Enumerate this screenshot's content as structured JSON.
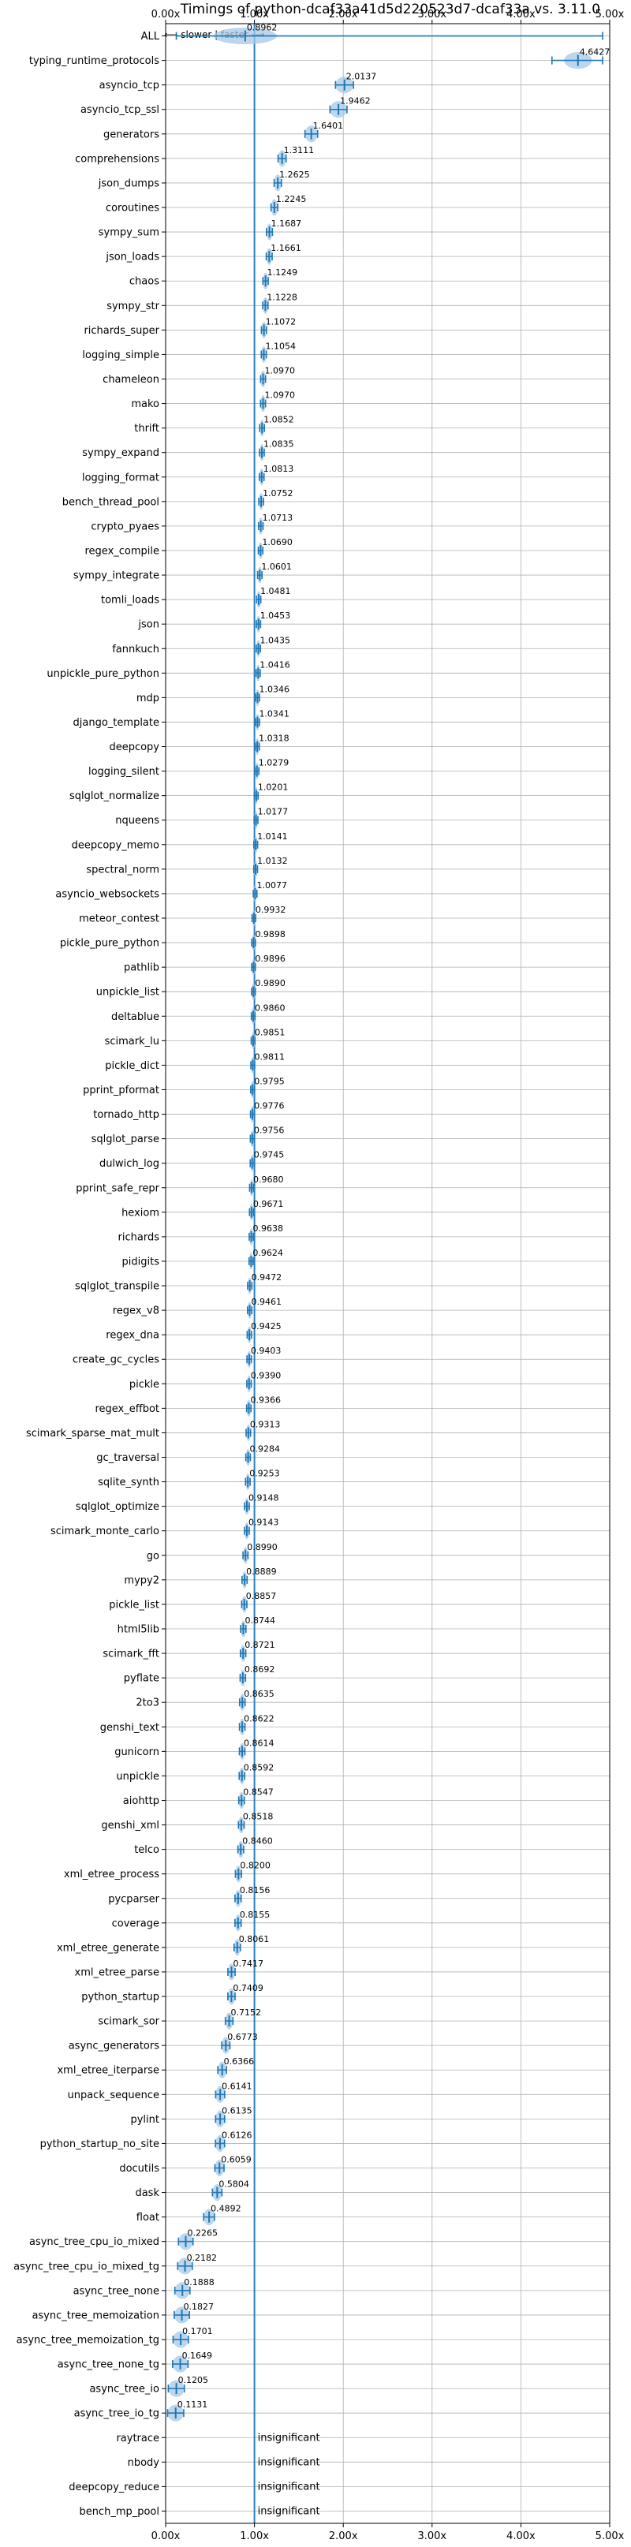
{
  "chart_data": {
    "type": "violin",
    "title": "Timings of python-dcaf33a41d5d220523d7-dcaf33a vs. 3.11.0",
    "direction_note": "⟵ slower | faster ⟶",
    "xlim": [
      0,
      5
    ],
    "x_ticks": [
      0,
      1,
      2,
      3,
      4,
      5
    ],
    "x_tick_labels": [
      "0.00x",
      "1.00x",
      "2.00x",
      "3.00x",
      "4.00x",
      "5.00x"
    ],
    "reference_line": 1.0,
    "grid": true,
    "colors": {
      "accent": "#1f77b4",
      "violin": "#a6c8e8",
      "grid": "#b0b0b0",
      "frame": "#000000",
      "ref_line": "#2a7fc1"
    },
    "categories": [
      "ALL",
      "typing_runtime_protocols",
      "asyncio_tcp",
      "asyncio_tcp_ssl",
      "generators",
      "comprehensions",
      "json_dumps",
      "coroutines",
      "sympy_sum",
      "json_loads",
      "chaos",
      "sympy_str",
      "richards_super",
      "logging_simple",
      "chameleon",
      "mako",
      "thrift",
      "sympy_expand",
      "logging_format",
      "bench_thread_pool",
      "crypto_pyaes",
      "regex_compile",
      "sympy_integrate",
      "tomli_loads",
      "json",
      "fannkuch",
      "unpickle_pure_python",
      "mdp",
      "django_template",
      "deepcopy",
      "logging_silent",
      "sqlglot_normalize",
      "nqueens",
      "deepcopy_memo",
      "spectral_norm",
      "asyncio_websockets",
      "meteor_contest",
      "pickle_pure_python",
      "pathlib",
      "unpickle_list",
      "deltablue",
      "scimark_lu",
      "pickle_dict",
      "pprint_pformat",
      "tornado_http",
      "sqlglot_parse",
      "dulwich_log",
      "pprint_safe_repr",
      "hexiom",
      "richards",
      "pidigits",
      "sqlglot_transpile",
      "regex_v8",
      "regex_dna",
      "create_gc_cycles",
      "pickle",
      "regex_effbot",
      "scimark_sparse_mat_mult",
      "gc_traversal",
      "sqlite_synth",
      "sqlglot_optimize",
      "scimark_monte_carlo",
      "go",
      "mypy2",
      "pickle_list",
      "html5lib",
      "scimark_fft",
      "pyflate",
      "2to3",
      "genshi_text",
      "gunicorn",
      "unpickle",
      "aiohttp",
      "genshi_xml",
      "telco",
      "xml_etree_process",
      "pycparser",
      "coverage",
      "xml_etree_generate",
      "xml_etree_parse",
      "python_startup",
      "scimark_sor",
      "async_generators",
      "xml_etree_iterparse",
      "unpack_sequence",
      "pylint",
      "python_startup_no_site",
      "docutils",
      "dask",
      "float",
      "async_tree_cpu_io_mixed",
      "async_tree_cpu_io_mixed_tg",
      "async_tree_none",
      "async_tree_memoization",
      "async_tree_memoization_tg",
      "async_tree_none_tg",
      "async_tree_io",
      "async_tree_io_tg",
      "raytrace",
      "nbody",
      "deepcopy_reduce",
      "bench_mp_pool"
    ],
    "values": [
      0.8962,
      4.6427,
      2.0137,
      1.9462,
      1.6401,
      1.3111,
      1.2625,
      1.2245,
      1.1687,
      1.1661,
      1.1249,
      1.1228,
      1.1072,
      1.1054,
      1.097,
      1.097,
      1.0852,
      1.0835,
      1.0813,
      1.0752,
      1.0713,
      1.069,
      1.0601,
      1.0481,
      1.0453,
      1.0435,
      1.0416,
      1.0346,
      1.0341,
      1.0318,
      1.0279,
      1.0201,
      1.0177,
      1.0141,
      1.0132,
      1.0077,
      0.9932,
      0.9898,
      0.9896,
      0.989,
      0.986,
      0.9851,
      0.9811,
      0.9795,
      0.9776,
      0.9756,
      0.9745,
      0.968,
      0.9671,
      0.9638,
      0.9624,
      0.9472,
      0.9461,
      0.9425,
      0.9403,
      0.939,
      0.9366,
      0.9313,
      0.9284,
      0.9253,
      0.9148,
      0.9143,
      0.899,
      0.8889,
      0.8857,
      0.8744,
      0.8721,
      0.8692,
      0.8635,
      0.8622,
      0.8614,
      0.8592,
      0.8547,
      0.8518,
      0.846,
      0.82,
      0.8156,
      0.8155,
      0.8061,
      0.7417,
      0.7409,
      0.7152,
      0.6773,
      0.6366,
      0.6141,
      0.6135,
      0.6126,
      0.6059,
      0.5804,
      0.4892,
      0.2265,
      0.2182,
      0.1888,
      0.1827,
      0.1701,
      0.1649,
      0.1205,
      0.1131,
      null,
      null,
      null,
      null
    ],
    "value_labels": [
      "0.8962",
      "4.6427",
      "2.0137",
      "1.9462",
      "1.6401",
      "1.3111",
      "1.2625",
      "1.2245",
      "1.1687",
      "1.1661",
      "1.1249",
      "1.1228",
      "1.1072",
      "1.1054",
      "1.0970",
      "1.0970",
      "1.0852",
      "1.0835",
      "1.0813",
      "1.0752",
      "1.0713",
      "1.0690",
      "1.0601",
      "1.0481",
      "1.0453",
      "1.0435",
      "1.0416",
      "1.0346",
      "1.0341",
      "1.0318",
      "1.0279",
      "1.0201",
      "1.0177",
      "1.0141",
      "1.0132",
      "1.0077",
      "0.9932",
      "0.9898",
      "0.9896",
      "0.9890",
      "0.9860",
      "0.9851",
      "0.9811",
      "0.9795",
      "0.9776",
      "0.9756",
      "0.9745",
      "0.9680",
      "0.9671",
      "0.9638",
      "0.9624",
      "0.9472",
      "0.9461",
      "0.9425",
      "0.9403",
      "0.9390",
      "0.9366",
      "0.9313",
      "0.9284",
      "0.9253",
      "0.9148",
      "0.9143",
      "0.8990",
      "0.8889",
      "0.8857",
      "0.8744",
      "0.8721",
      "0.8692",
      "0.8635",
      "0.8622",
      "0.8614",
      "0.8592",
      "0.8547",
      "0.8518",
      "0.8460",
      "0.8200",
      "0.8156",
      "0.8155",
      "0.8061",
      "0.7417",
      "0.7409",
      "0.7152",
      "0.6773",
      "0.6366",
      "0.6141",
      "0.6135",
      "0.6126",
      "0.6059",
      "0.5804",
      "0.4892",
      "0.2265",
      "0.2182",
      "0.1888",
      "0.1827",
      "0.1701",
      "0.1649",
      "0.1205",
      "0.1131",
      "insignificant",
      "insignificant",
      "insignificant",
      "insignificant"
    ],
    "spread": {
      "ALL": [
        0.12,
        4.92
      ],
      "typing_runtime_protocols": [
        4.35,
        4.92
      ]
    }
  }
}
